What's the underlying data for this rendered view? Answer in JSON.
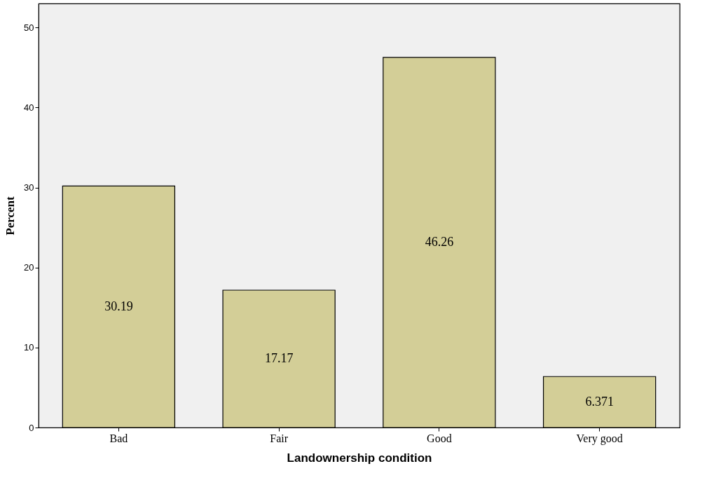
{
  "chart_data": {
    "type": "bar",
    "xlabel": "Landownership condition",
    "ylabel": "Percent",
    "categories": [
      "Bad",
      "Fair",
      "Good",
      "Very good"
    ],
    "values": [
      30.19,
      17.17,
      46.26,
      6.371
    ],
    "color": "#d3ce97",
    "ylim": [
      0,
      53
    ],
    "yticks": [
      0,
      10,
      20,
      30,
      40,
      50
    ],
    "grid": false,
    "data_labels": true
  }
}
